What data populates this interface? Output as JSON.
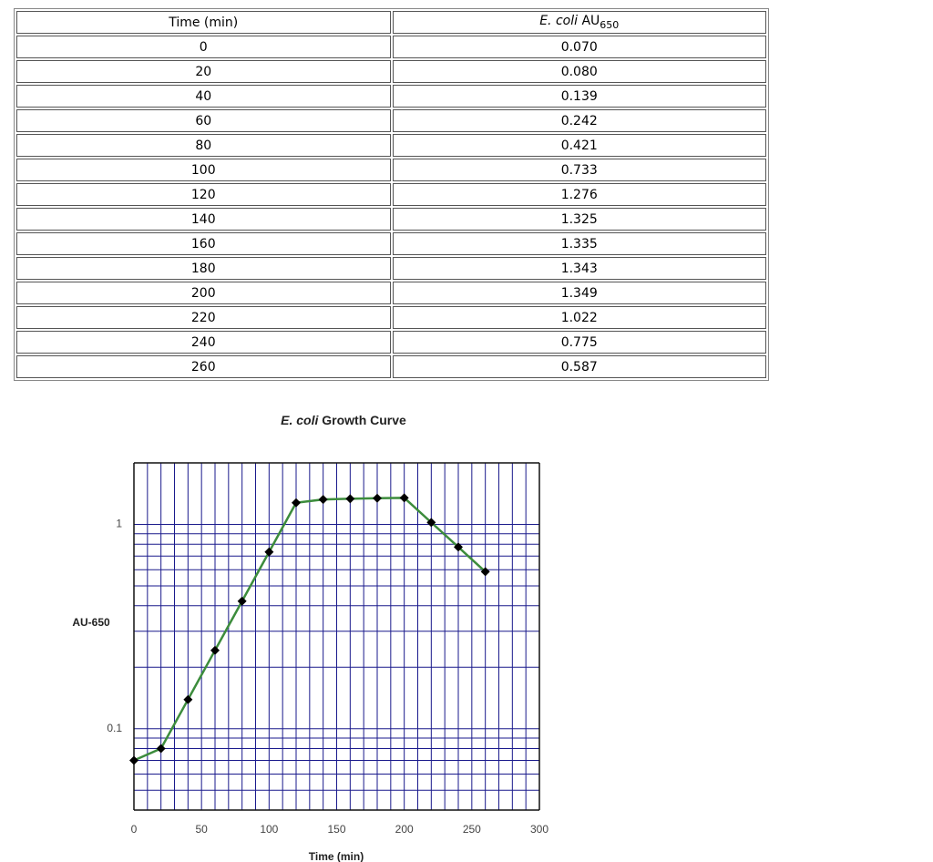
{
  "table": {
    "header": [
      "Time (min)",
      {
        "em": "E. coli",
        "text": "AU",
        "sub": "650"
      }
    ],
    "rows": [
      [
        "0",
        "0.070"
      ],
      [
        "20",
        "0.080"
      ],
      [
        "40",
        "0.139"
      ],
      [
        "60",
        "0.242"
      ],
      [
        "80",
        "0.421"
      ],
      [
        "100",
        "0.733"
      ],
      [
        "120",
        "1.276"
      ],
      [
        "140",
        "1.325"
      ],
      [
        "160",
        "1.335"
      ],
      [
        "180",
        "1.343"
      ],
      [
        "200",
        "1.349"
      ],
      [
        "220",
        "1.022"
      ],
      [
        "240",
        "0.775"
      ],
      [
        "260",
        "0.587"
      ]
    ]
  },
  "chart_data": {
    "type": "line",
    "title_em": "E. coli",
    "title": "Growth Curve",
    "xlabel": "Time (min)",
    "ylabel": "AU-650",
    "x": [
      0,
      20,
      40,
      60,
      80,
      100,
      120,
      140,
      160,
      180,
      200,
      220,
      240,
      260
    ],
    "values": [
      0.07,
      0.08,
      0.139,
      0.242,
      0.421,
      0.733,
      1.276,
      1.325,
      1.335,
      1.343,
      1.349,
      1.022,
      0.775,
      0.587
    ],
    "color": "#3c8c3c",
    "marker_color": "#000000",
    "grid_color": "#1a1a8c",
    "xlim": [
      0,
      300
    ],
    "xticks": [
      0,
      50,
      100,
      150,
      200,
      250,
      300
    ],
    "ylim": [
      0.04,
      2
    ],
    "yticks": [
      0.1,
      1
    ],
    "log_y": true,
    "grid": true,
    "xgrid": [
      10,
      20,
      30,
      40,
      60,
      70,
      80,
      90,
      110,
      120,
      130,
      140,
      160,
      170,
      180,
      190,
      210,
      220,
      230,
      240,
      260,
      270,
      280,
      290
    ],
    "ygrid": [
      0.05,
      0.06,
      0.07,
      0.08,
      0.09,
      0.2,
      0.3,
      0.4,
      0.5,
      0.6,
      0.7,
      0.8,
      0.9
    ]
  }
}
